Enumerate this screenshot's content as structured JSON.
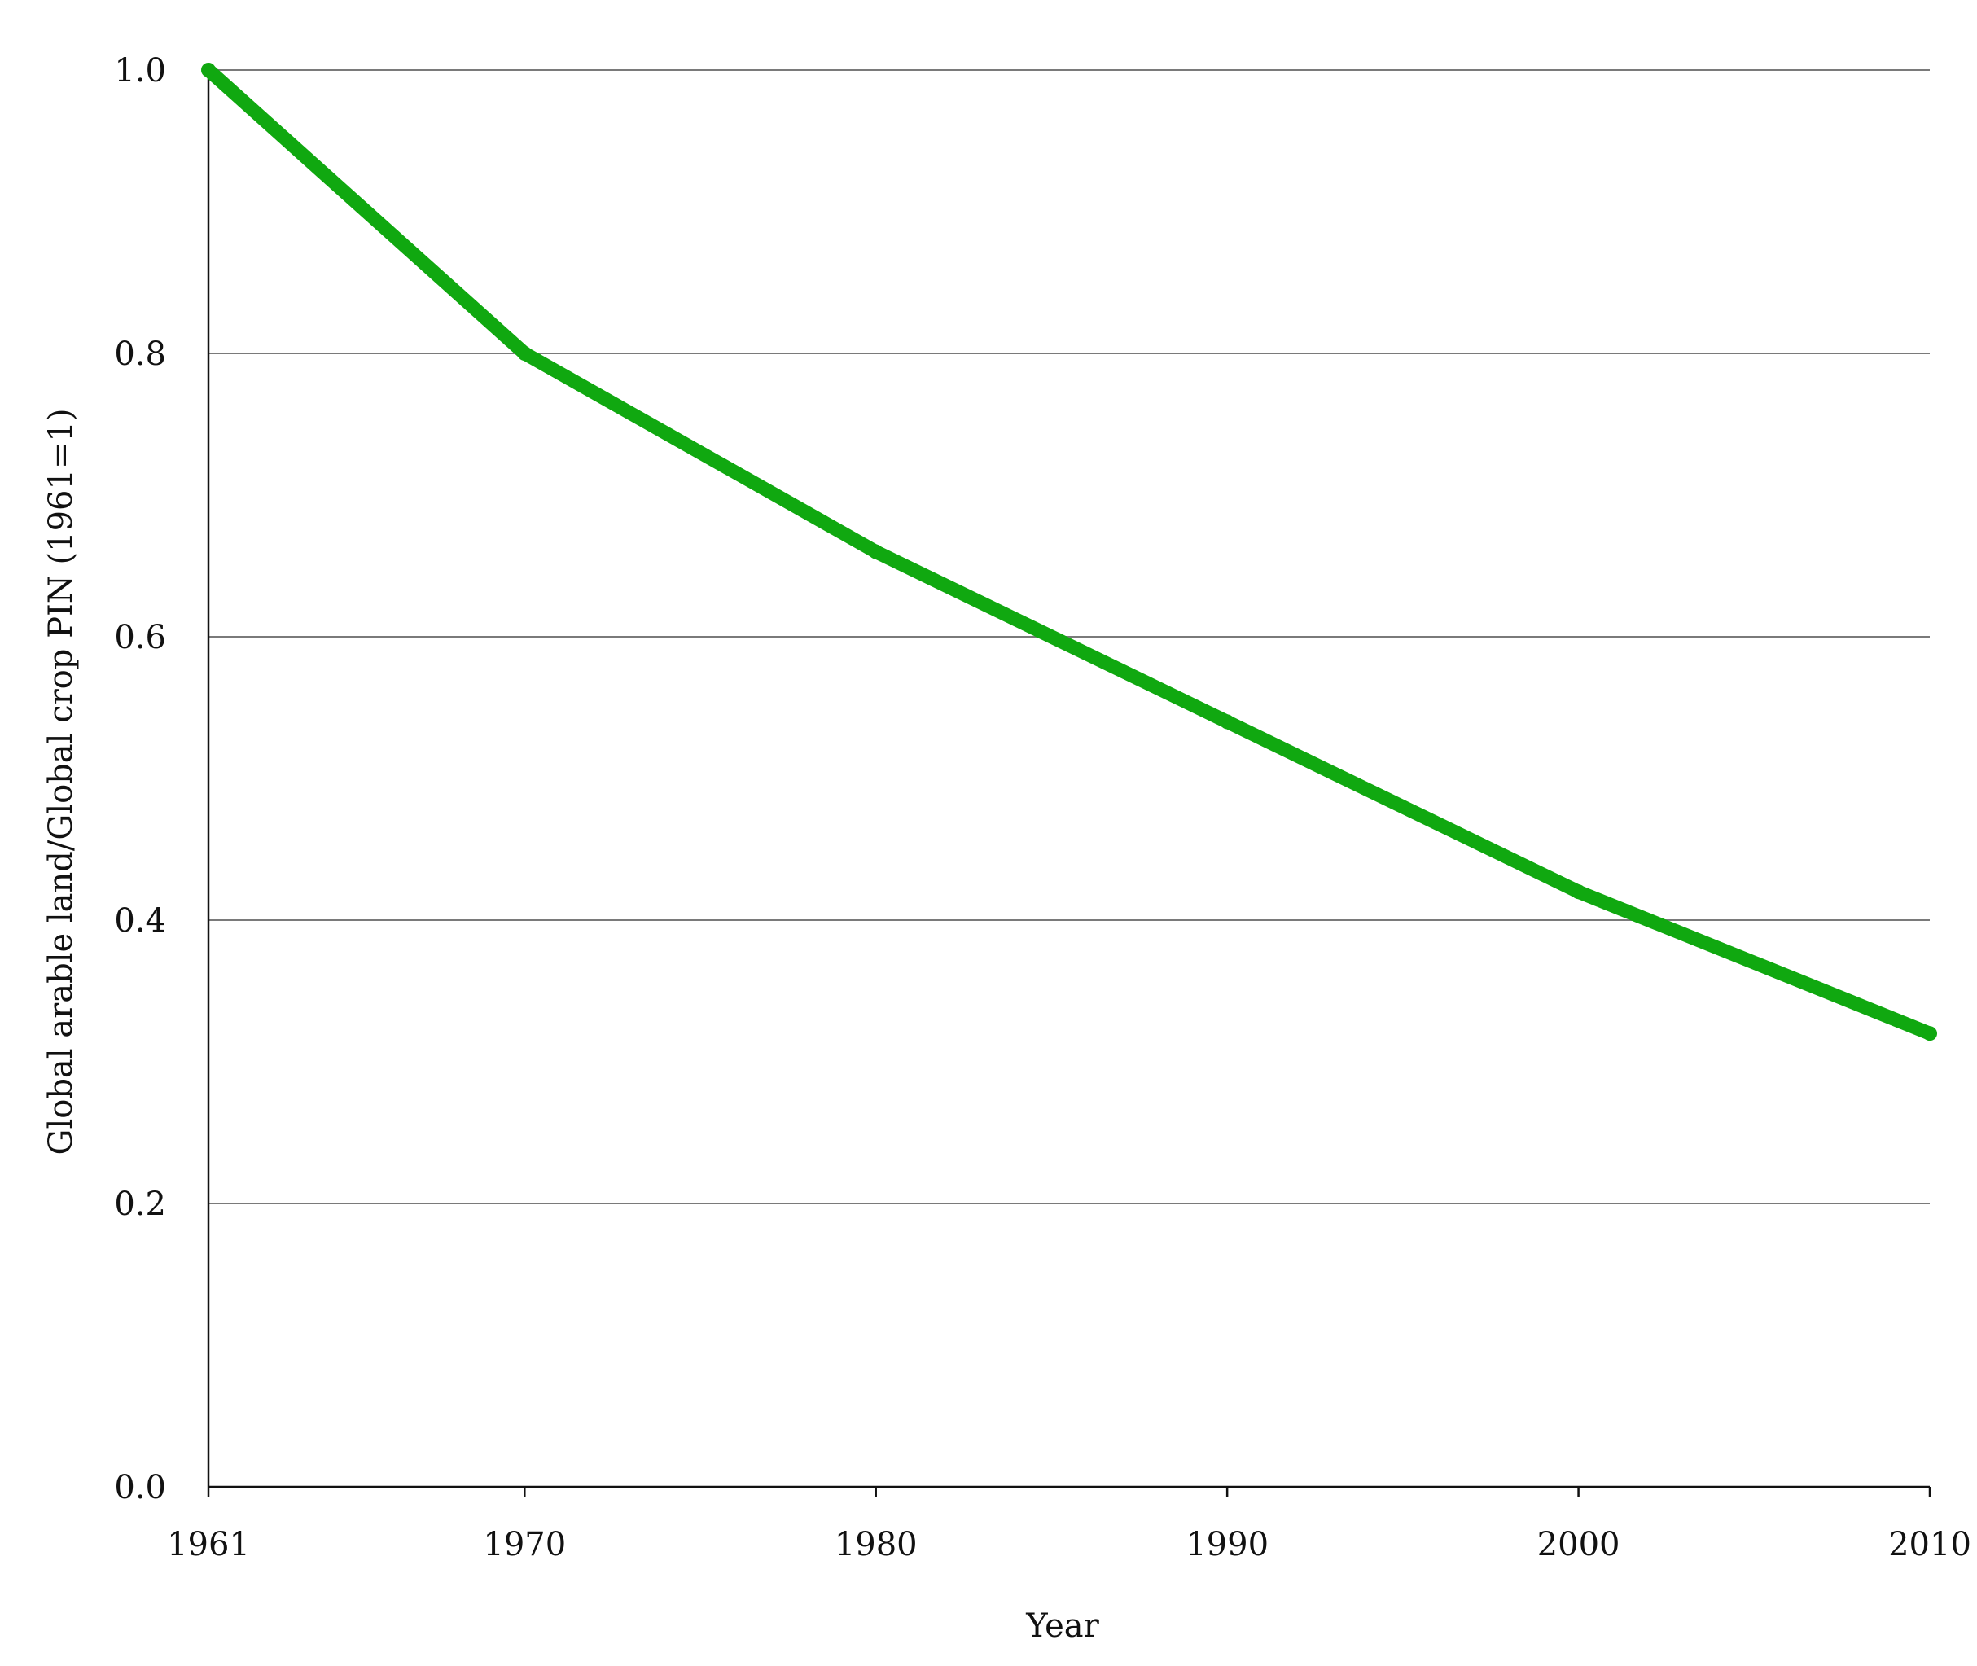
{
  "chart_data": {
    "type": "line",
    "xlabel": "Year",
    "ylabel": "Global arable land/Global crop PIN (1961=1)",
    "x_ticks": [
      "1961",
      "1970",
      "1980",
      "1990",
      "2000",
      "2010"
    ],
    "y_ticks": [
      "0.0",
      "0.2",
      "0.4",
      "0.6",
      "0.8",
      "1.0"
    ],
    "xlim": [
      1961,
      2010
    ],
    "ylim": [
      0,
      1
    ],
    "grid": "horizontal",
    "x_tick_positions": [
      1961,
      1970,
      1980,
      1990,
      2000,
      2010
    ],
    "series": [
      {
        "color": "#10a810",
        "x": [
          1961,
          1970,
          1980,
          1990,
          2000,
          2010
        ],
        "values": [
          1.0,
          0.8,
          0.66,
          0.54,
          0.42,
          0.32
        ]
      }
    ]
  }
}
